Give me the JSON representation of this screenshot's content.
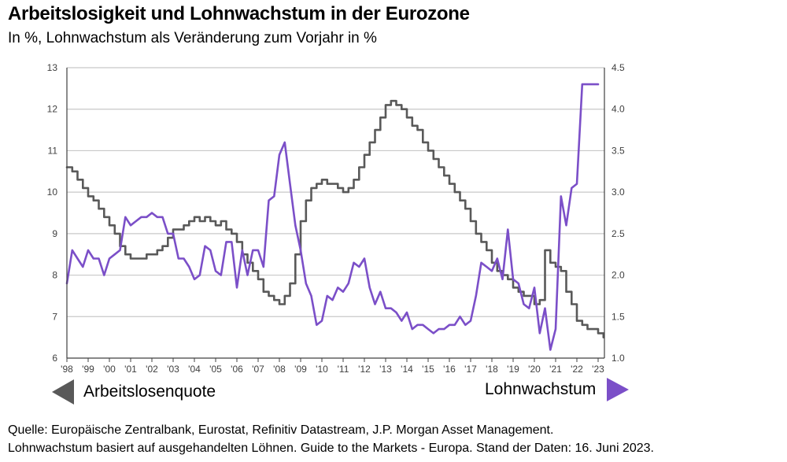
{
  "header": {
    "title": "Arbeitslosigkeit und Lohnwachstum in der Eurozone",
    "subtitle": "In %, Lohnwachstum als Veränderung zum Vorjahr in %"
  },
  "legend": {
    "left_label": "Arbeitslosenquote",
    "right_label": "Lohnwachstum"
  },
  "footer": {
    "line1": "Quelle: Europäische Zentralbank, Eurostat, Refinitiv Datastream, J.P. Morgan Asset Management.",
    "line2": "Lohnwachstum basiert auf ausgehandelten Löhnen. Guide to the Markets - Europa. Stand der Daten: 16. Juni 2023."
  },
  "chart_data": {
    "type": "line",
    "title": "Arbeitslosigkeit und Lohnwachstum in der Eurozone",
    "subtitle": "In %, Lohnwachstum als Veränderung zum Vorjahr in %",
    "xlabel": "",
    "x_ticks": [
      "'98",
      "'99",
      "'00",
      "'01",
      "'02",
      "'03",
      "'04",
      "'05",
      "'06",
      "'07",
      "'08",
      "'09",
      "'10",
      "'11",
      "'12",
      "'13",
      "'14",
      "'15",
      "'16",
      "'17",
      "'18",
      "'19",
      "'20",
      "'21",
      "'22",
      "'23"
    ],
    "x_range": [
      1998.0,
      2023.35
    ],
    "y_left": {
      "label": "Arbeitslosenquote",
      "ylim": [
        6,
        13
      ],
      "ticks": [
        "6",
        "7",
        "8",
        "9",
        "10",
        "11",
        "12",
        "13"
      ]
    },
    "y_right": {
      "label": "Lohnwachstum",
      "ylim": [
        1.0,
        4.5
      ],
      "ticks": [
        "1.0",
        "1.5",
        "2.0",
        "2.5",
        "3.0",
        "3.5",
        "4.0",
        "4.5"
      ]
    },
    "grid": true,
    "colors": {
      "unemployment": "#595959",
      "wages": "#7B4FC8",
      "grid": "#C8C8C8",
      "axis": "#404040"
    },
    "series": [
      {
        "name": "Arbeitslosenquote",
        "axis": "left",
        "x": [
          1998.0,
          1998.25,
          1998.5,
          1998.75,
          1999.0,
          1999.25,
          1999.5,
          1999.75,
          2000.0,
          2000.25,
          2000.5,
          2000.75,
          2001.0,
          2001.25,
          2001.5,
          2001.75,
          2002.0,
          2002.25,
          2002.5,
          2002.75,
          2003.0,
          2003.25,
          2003.5,
          2003.75,
          2004.0,
          2004.25,
          2004.5,
          2004.75,
          2005.0,
          2005.25,
          2005.5,
          2005.75,
          2006.0,
          2006.25,
          2006.5,
          2006.75,
          2007.0,
          2007.25,
          2007.5,
          2007.75,
          2008.0,
          2008.25,
          2008.5,
          2008.75,
          2009.0,
          2009.25,
          2009.5,
          2009.75,
          2010.0,
          2010.25,
          2010.5,
          2010.75,
          2011.0,
          2011.25,
          2011.5,
          2011.75,
          2012.0,
          2012.25,
          2012.5,
          2012.75,
          2013.0,
          2013.25,
          2013.5,
          2013.75,
          2014.0,
          2014.25,
          2014.5,
          2014.75,
          2015.0,
          2015.25,
          2015.5,
          2015.75,
          2016.0,
          2016.25,
          2016.5,
          2016.75,
          2017.0,
          2017.25,
          2017.5,
          2017.75,
          2018.0,
          2018.25,
          2018.5,
          2018.75,
          2019.0,
          2019.25,
          2019.5,
          2019.75,
          2020.0,
          2020.25,
          2020.5,
          2020.75,
          2021.0,
          2021.25,
          2021.5,
          2021.75,
          2022.0,
          2022.25,
          2022.5,
          2022.75,
          2023.0,
          2023.25
        ],
        "values": [
          10.6,
          10.5,
          10.3,
          10.1,
          9.9,
          9.8,
          9.6,
          9.4,
          9.2,
          9.0,
          8.7,
          8.5,
          8.4,
          8.4,
          8.4,
          8.5,
          8.5,
          8.6,
          8.7,
          8.9,
          9.1,
          9.1,
          9.2,
          9.3,
          9.4,
          9.3,
          9.4,
          9.3,
          9.2,
          9.3,
          9.1,
          9.0,
          8.8,
          8.5,
          8.3,
          8.1,
          7.9,
          7.6,
          7.5,
          7.4,
          7.3,
          7.5,
          7.8,
          8.5,
          9.3,
          9.8,
          10.1,
          10.2,
          10.3,
          10.2,
          10.2,
          10.1,
          10.0,
          10.1,
          10.3,
          10.6,
          10.9,
          11.2,
          11.5,
          11.8,
          12.1,
          12.2,
          12.1,
          12.0,
          11.8,
          11.6,
          11.5,
          11.2,
          11.0,
          10.8,
          10.6,
          10.4,
          10.2,
          10.0,
          9.8,
          9.6,
          9.3,
          9.0,
          8.8,
          8.6,
          8.3,
          8.1,
          8.0,
          7.9,
          7.7,
          7.6,
          7.5,
          7.5,
          7.3,
          7.4,
          8.6,
          8.3,
          8.2,
          8.1,
          7.6,
          7.3,
          6.9,
          6.8,
          6.7,
          6.7,
          6.6,
          6.5
        ]
      },
      {
        "name": "Lohnwachstum",
        "axis": "right",
        "x": [
          1998.0,
          1998.25,
          1998.5,
          1998.75,
          1999.0,
          1999.25,
          1999.5,
          1999.75,
          2000.0,
          2000.25,
          2000.5,
          2000.75,
          2001.0,
          2001.25,
          2001.5,
          2001.75,
          2002.0,
          2002.25,
          2002.5,
          2002.75,
          2003.0,
          2003.25,
          2003.5,
          2003.75,
          2004.0,
          2004.25,
          2004.5,
          2004.75,
          2005.0,
          2005.25,
          2005.5,
          2005.75,
          2006.0,
          2006.25,
          2006.5,
          2006.75,
          2007.0,
          2007.25,
          2007.5,
          2007.75,
          2008.0,
          2008.25,
          2008.5,
          2008.75,
          2009.0,
          2009.25,
          2009.5,
          2009.75,
          2010.0,
          2010.25,
          2010.5,
          2010.75,
          2011.0,
          2011.25,
          2011.5,
          2011.75,
          2012.0,
          2012.25,
          2012.5,
          2012.75,
          2013.0,
          2013.25,
          2013.5,
          2013.75,
          2014.0,
          2014.25,
          2014.5,
          2014.75,
          2015.0,
          2015.25,
          2015.5,
          2015.75,
          2016.0,
          2016.25,
          2016.5,
          2016.75,
          2017.0,
          2017.25,
          2017.5,
          2017.75,
          2018.0,
          2018.25,
          2018.5,
          2018.75,
          2019.0,
          2019.25,
          2019.5,
          2019.75,
          2020.0,
          2020.25,
          2020.5,
          2020.75,
          2021.0,
          2021.25,
          2021.5,
          2021.75,
          2022.0,
          2022.25,
          2022.5,
          2022.75,
          2023.0,
          2023.25
        ],
        "values": [
          1.9,
          2.3,
          2.2,
          2.1,
          2.3,
          2.2,
          2.2,
          2.0,
          2.2,
          2.25,
          2.3,
          2.7,
          2.6,
          2.65,
          2.7,
          2.7,
          2.75,
          2.7,
          2.7,
          2.5,
          2.5,
          2.2,
          2.2,
          2.1,
          1.95,
          2.0,
          2.35,
          2.3,
          2.05,
          2.0,
          2.4,
          2.4,
          1.85,
          2.3,
          2.0,
          2.3,
          2.3,
          2.1,
          2.9,
          2.95,
          3.45,
          3.6,
          3.1,
          2.6,
          2.3,
          1.9,
          1.75,
          1.4,
          1.45,
          1.75,
          1.7,
          1.85,
          1.8,
          1.9,
          2.15,
          2.1,
          2.2,
          1.85,
          1.65,
          1.8,
          1.6,
          1.6,
          1.55,
          1.45,
          1.55,
          1.35,
          1.4,
          1.4,
          1.35,
          1.3,
          1.35,
          1.35,
          1.4,
          1.4,
          1.5,
          1.4,
          1.45,
          1.75,
          2.15,
          2.1,
          2.05,
          2.2,
          1.95,
          2.55,
          1.95,
          1.9,
          1.65,
          1.6,
          1.85,
          1.3,
          1.6,
          1.1,
          1.35,
          2.95,
          2.6,
          3.05,
          3.1,
          4.3,
          4.3,
          4.3,
          4.3,
          4.3
        ]
      }
    ]
  }
}
